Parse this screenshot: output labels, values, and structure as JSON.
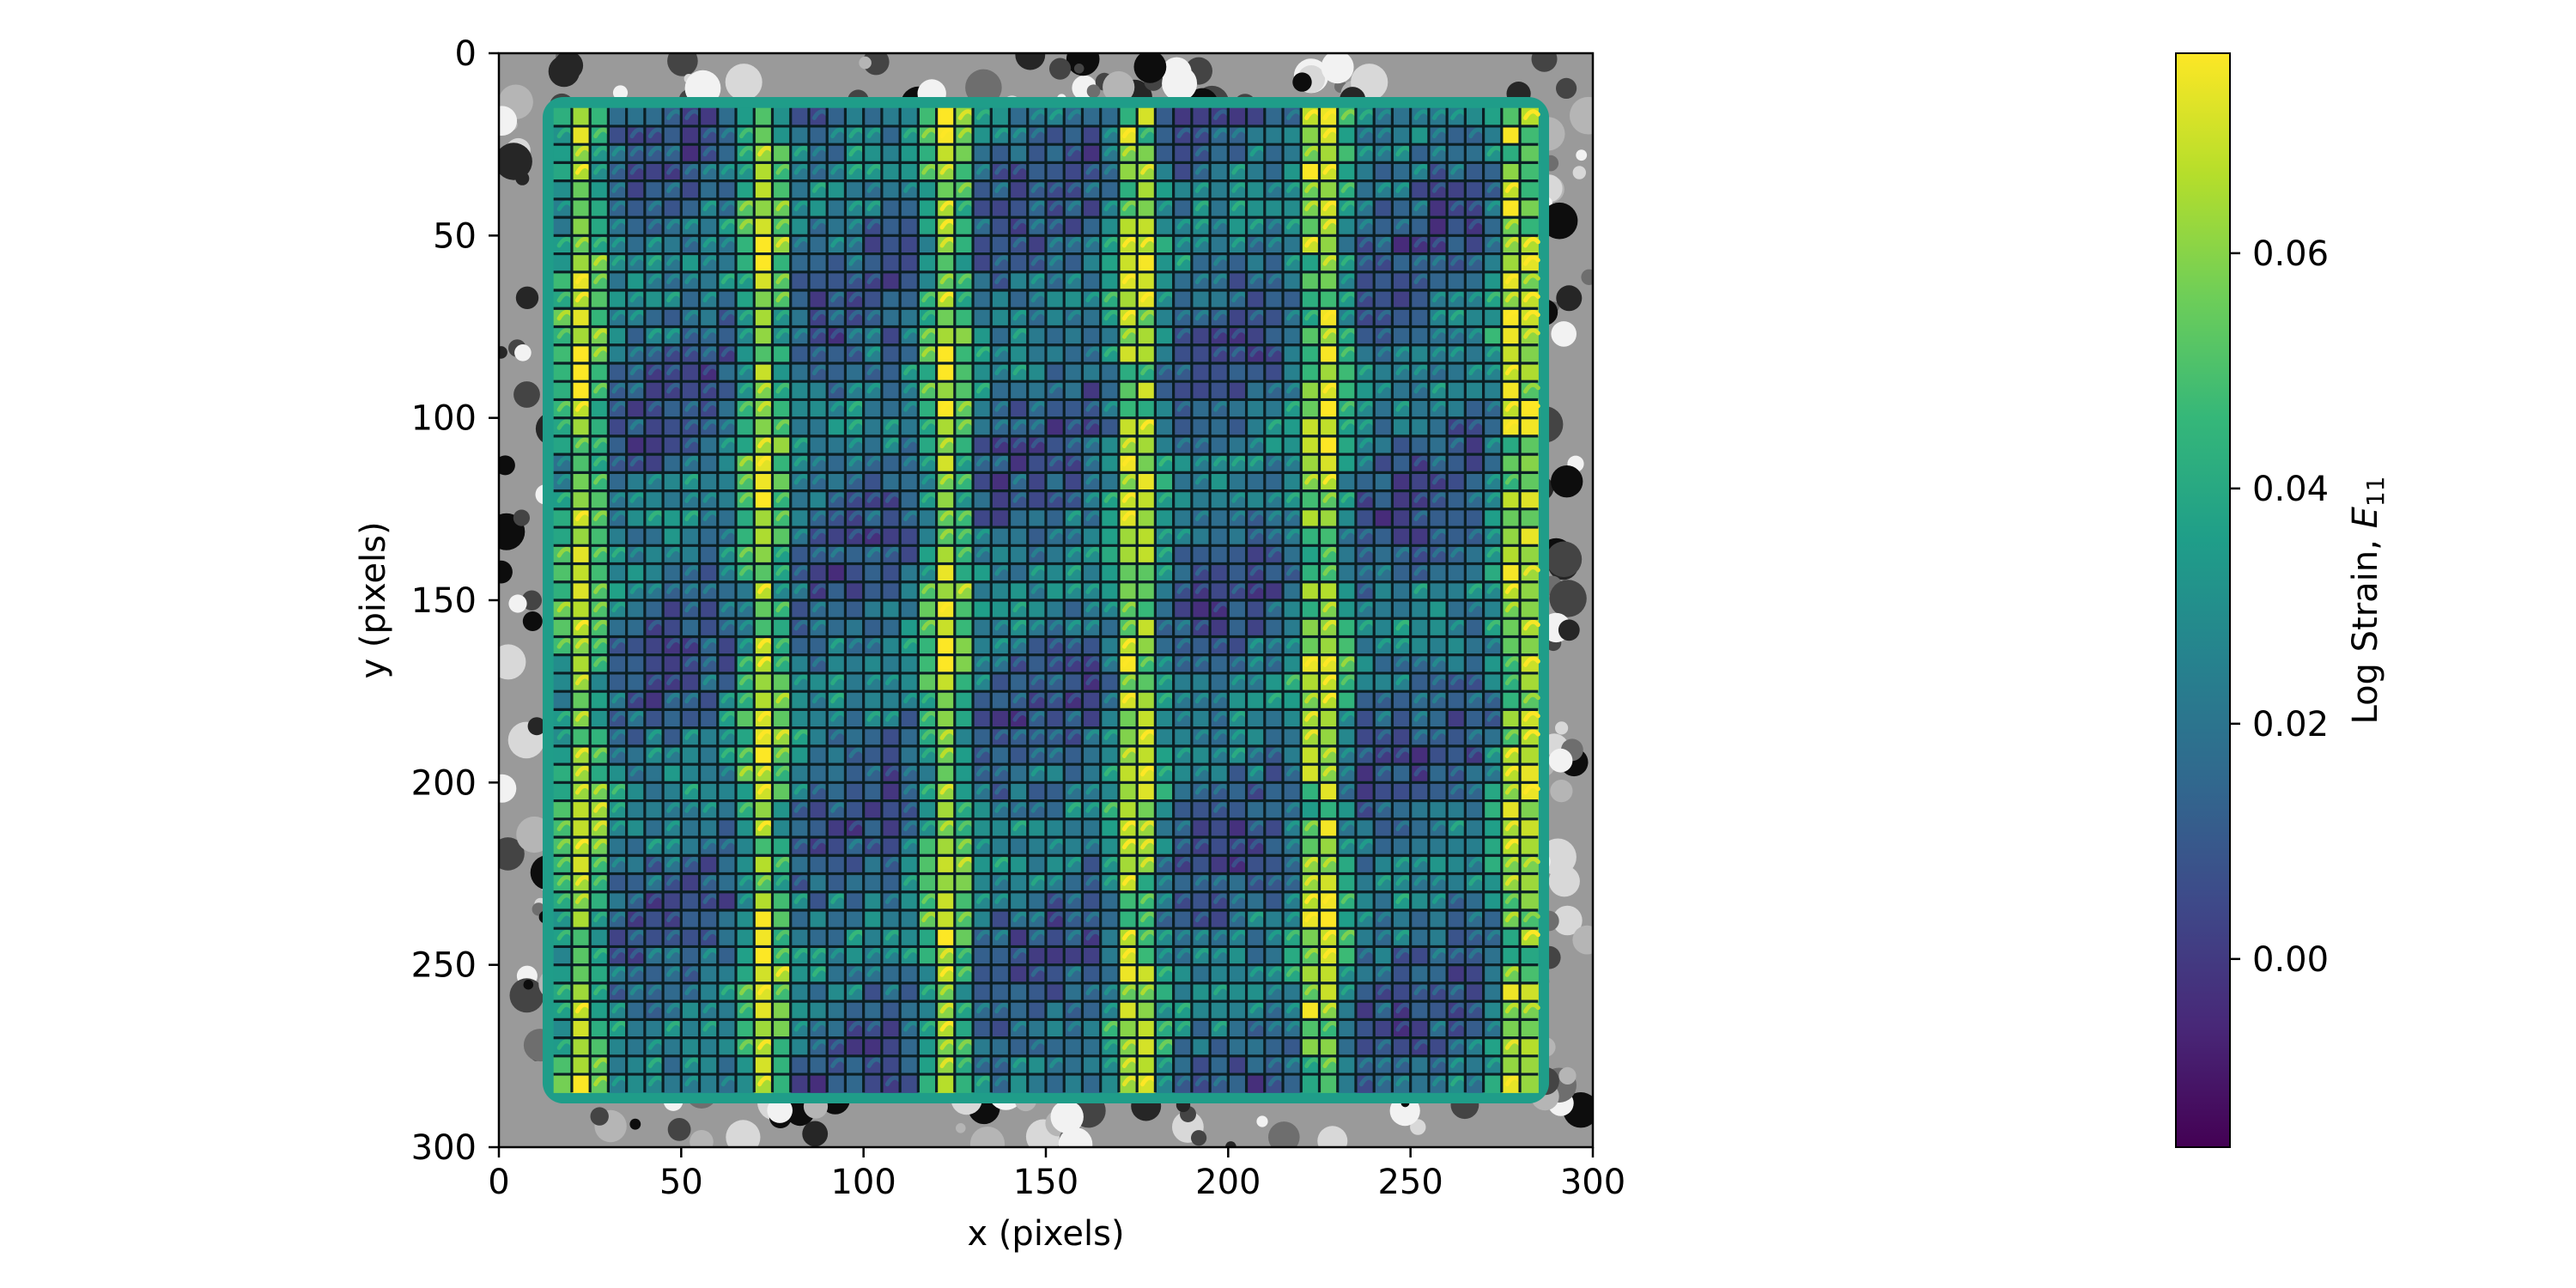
{
  "chart_data": {
    "type": "heatmap",
    "title": "",
    "xlabel": "x (pixels)",
    "ylabel": "y (pixels)",
    "xlim": [
      0,
      300
    ],
    "ylim": [
      300,
      0
    ],
    "x_ticks": [
      0,
      50,
      100,
      150,
      200,
      250,
      300
    ],
    "y_ticks": [
      0,
      50,
      100,
      150,
      200,
      250,
      300
    ],
    "x_tick_labels": [
      "0",
      "50",
      "100",
      "150",
      "200",
      "250",
      "300"
    ],
    "y_tick_labels": [
      "0",
      "50",
      "100",
      "150",
      "200",
      "250",
      "300"
    ],
    "grid": false,
    "background": "grayscale speckle pattern image",
    "mesh": {
      "x_range": [
        15,
        285
      ],
      "y_range": [
        15,
        285
      ],
      "cell_size": 5
    },
    "field": "log strain E11",
    "colormap": "viridis",
    "colorbar": {
      "label_text": "Log Strain, ",
      "label_symbol": "E",
      "label_subscript": "11",
      "range": [
        -0.016,
        0.077
      ],
      "ticks": [
        0.0,
        0.02,
        0.04,
        0.06
      ],
      "tick_labels": [
        "0.00",
        "0.02",
        "0.04",
        "0.06"
      ]
    },
    "high_strain_bands_x": [
      23,
      73,
      123,
      175,
      226,
      280
    ],
    "colors": {
      "viridis": [
        "#440154",
        "#482878",
        "#3e4989",
        "#31688e",
        "#26828e",
        "#1f9e89",
        "#35b779",
        "#6ece58",
        "#b5de2b",
        "#fde725"
      ],
      "mesh_line": "#0b1f24",
      "axis": "#000000"
    }
  }
}
